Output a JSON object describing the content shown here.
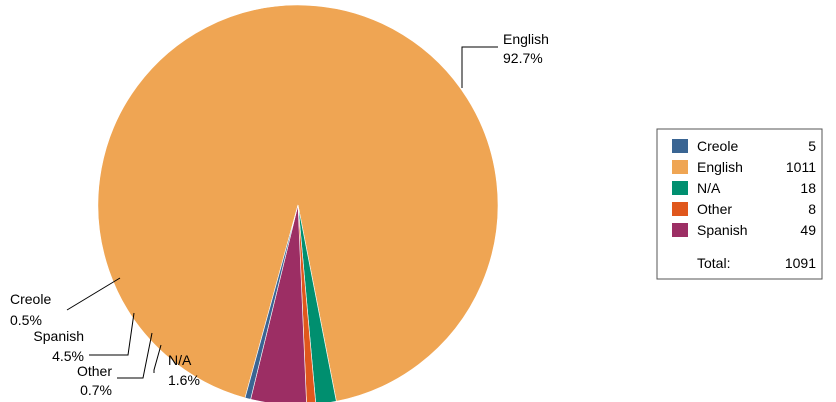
{
  "chart_data": {
    "type": "pie",
    "title": "",
    "slices": [
      {
        "label": "English",
        "value": 1011,
        "percent": "92.7%",
        "color": "#efa553"
      },
      {
        "label": "N/A",
        "value": 18,
        "percent": "1.6%",
        "color": "#008f6f"
      },
      {
        "label": "Other",
        "value": 8,
        "percent": "0.7%",
        "color": "#e0571c"
      },
      {
        "label": "Spanish",
        "value": 49,
        "percent": "4.5%",
        "color": "#9c2e64"
      },
      {
        "label": "Creole",
        "value": 5,
        "percent": "0.5%",
        "color": "#3a6593"
      }
    ],
    "legend": {
      "placement": "right",
      "entries": [
        {
          "label": "Creole",
          "value": "5",
          "color": "#3a6593"
        },
        {
          "label": "English",
          "value": "1011",
          "color": "#efa553"
        },
        {
          "label": "N/A",
          "value": "18",
          "color": "#008f6f"
        },
        {
          "label": "Other",
          "value": "8",
          "color": "#e0571c"
        },
        {
          "label": "Spanish",
          "value": "49",
          "color": "#9c2e64"
        }
      ],
      "total_label": "Total:",
      "total_value": "1091"
    }
  }
}
